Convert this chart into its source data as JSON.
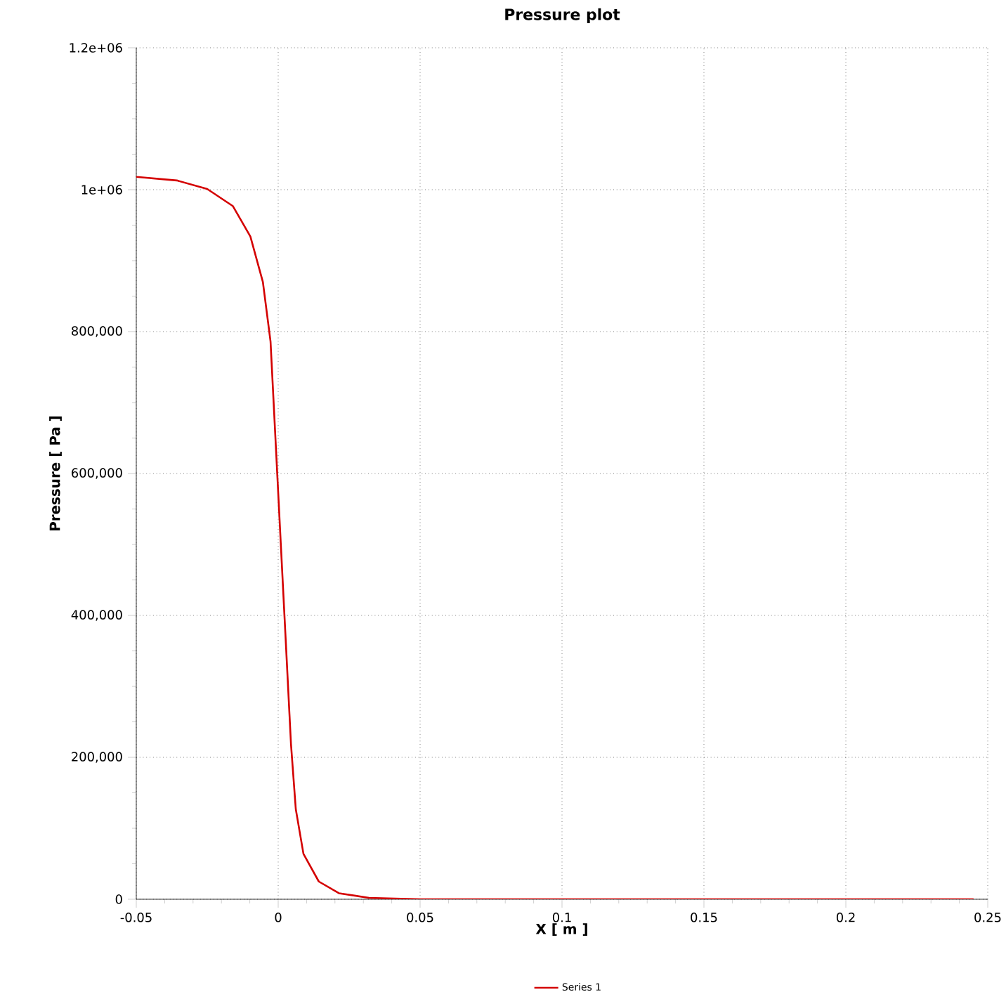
{
  "chart_data": {
    "type": "line",
    "title": "Pressure plot",
    "xlabel": "X [ m ]",
    "ylabel": "Pressure [ Pa ]",
    "xlim": [
      -0.05,
      0.25
    ],
    "ylim": [
      0,
      1200000
    ],
    "xticks": [
      -0.05,
      0,
      0.05,
      0.1,
      0.15,
      0.2,
      0.25
    ],
    "yticks": [
      0,
      {
        "value": 200000,
        "label": "200,000"
      },
      {
        "value": 400000,
        "label": "400,000"
      },
      {
        "value": 600000,
        "label": "600,000"
      },
      {
        "value": 800000,
        "label": "800,000"
      },
      {
        "value": 1000000,
        "label": "1e+06"
      },
      {
        "value": 1200000,
        "label": "1.2e+06"
      }
    ],
    "grid": true,
    "legend": "bottom",
    "line_style": "solid",
    "marker": "none",
    "series": [
      {
        "name": "Series 1",
        "color": "#d40000",
        "x": [
          -0.05,
          -0.0357,
          -0.025,
          -0.016,
          -0.0098,
          -0.0054,
          -0.0027,
          -0.0009,
          0.0009,
          0.0027,
          0.0045,
          0.0062,
          0.0089,
          0.0143,
          0.0214,
          0.032,
          0.05,
          0.1,
          0.15,
          0.2,
          0.245
        ],
        "values": [
          1018000,
          1013000,
          1001000,
          977000,
          934000,
          870000,
          786000,
          644000,
          502000,
          361000,
          219000,
          127000,
          64000,
          25000,
          8500,
          2000,
          0,
          0,
          0,
          0,
          0
        ]
      }
    ]
  }
}
